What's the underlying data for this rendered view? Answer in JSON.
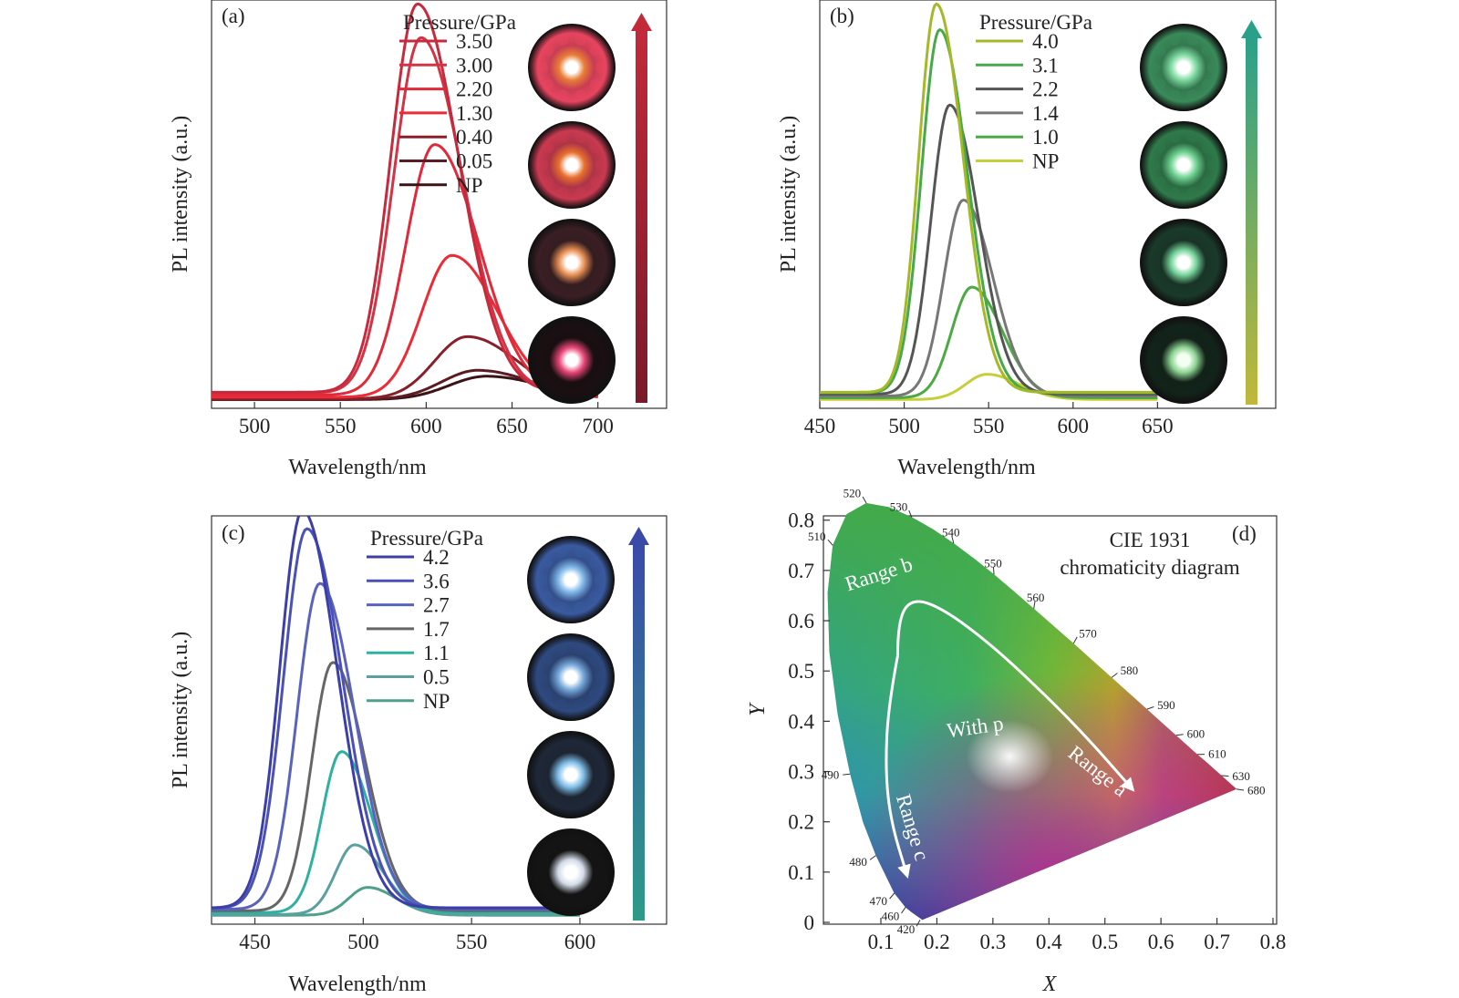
{
  "figure": {
    "colors": {
      "axis": "#333333",
      "cie_wavelength_text": "#222222"
    }
  },
  "chart_data": [
    {
      "id": "a",
      "type": "line",
      "panel_label": "(a)",
      "xlabel": "Wavelength/nm",
      "ylabel": "PL intensity (a.u.)",
      "xlim": [
        475,
        740
      ],
      "ylim": [
        0,
        1.0
      ],
      "xticks": [
        500,
        550,
        600,
        650,
        700
      ],
      "legend_title": "Pressure/GPa",
      "legend_placement": "top-center",
      "grid": false,
      "x_range": [
        475,
        700
      ],
      "series": [
        {
          "name": "3.50",
          "peak_x": 595,
          "peak_y": 1.0,
          "fwhm": 45,
          "color": "#c72a3c"
        },
        {
          "name": "3.00",
          "peak_x": 597,
          "peak_y": 0.915,
          "fwhm": 46,
          "color": "#d33344"
        },
        {
          "name": "2.20",
          "peak_x": 605,
          "peak_y": 0.645,
          "fwhm": 48,
          "color": "#e02a3a"
        },
        {
          "name": "1.30",
          "peak_x": 615,
          "peak_y": 0.365,
          "fwhm": 50,
          "color": "#ee2a35"
        },
        {
          "name": "0.40",
          "peak_x": 624,
          "peak_y": 0.16,
          "fwhm": 55,
          "color": "#8a1f2c"
        },
        {
          "name": "0.05",
          "peak_x": 630,
          "peak_y": 0.075,
          "fwhm": 60,
          "color": "#5c1a22"
        },
        {
          "name": "NP",
          "peak_x": 635,
          "peak_y": 0.06,
          "fwhm": 62,
          "color": "#3a1416"
        }
      ],
      "inset_photos": [
        {
          "glow": "#ffffff",
          "ring": "#e8455f",
          "mid": "#ff8a3a"
        },
        {
          "glow": "#ffffff",
          "ring": "#c93a50",
          "mid": "#ff7a30"
        },
        {
          "glow": "#ffffff",
          "ring": "#3a1f24",
          "mid": "#ff9d5a"
        },
        {
          "glow": "#ffffff",
          "ring": "#1a0f12",
          "mid": "#ff4a80"
        }
      ],
      "arrow_colors": [
        "#c22a3a",
        "#7a1a2a"
      ]
    },
    {
      "id": "b",
      "type": "line",
      "panel_label": "(b)",
      "xlabel": "Wavelength/nm",
      "ylabel": "PL intensity (a.u.)",
      "xlim": [
        450,
        720
      ],
      "ylim": [
        0,
        1.0
      ],
      "xticks": [
        450,
        500,
        550,
        600,
        650
      ],
      "legend_title": "Pressure/GPa",
      "legend_placement": "top-center",
      "grid": false,
      "x_range": [
        450,
        650
      ],
      "series": [
        {
          "name": "4.0",
          "peak_x": 519,
          "peak_y": 1.0,
          "fwhm": 30,
          "color": "#a6b828"
        },
        {
          "name": "3.1",
          "peak_x": 521,
          "peak_y": 0.935,
          "fwhm": 31,
          "color": "#46a94a"
        },
        {
          "name": "2.2",
          "peak_x": 527,
          "peak_y": 0.745,
          "fwhm": 32,
          "color": "#555555"
        },
        {
          "name": "1.4",
          "peak_x": 535,
          "peak_y": 0.505,
          "fwhm": 33,
          "color": "#777777"
        },
        {
          "name": "1.0",
          "peak_x": 540,
          "peak_y": 0.285,
          "fwhm": 34,
          "color": "#4caa42"
        },
        {
          "name": "NP",
          "peak_x": 549,
          "peak_y": 0.065,
          "fwhm": 36,
          "color": "#c5cf3a"
        }
      ],
      "inset_photos": [
        {
          "glow": "#ffffff",
          "ring": "#3a8a5a",
          "mid": "#8af0b0"
        },
        {
          "glow": "#ffffff",
          "ring": "#2f7a4a",
          "mid": "#7ae8a0"
        },
        {
          "glow": "#ffffff",
          "ring": "#1a3a2a",
          "mid": "#80e8a8"
        },
        {
          "glow": "#f4fff2",
          "ring": "#12241a",
          "mid": "#9ae8a0"
        }
      ],
      "arrow_colors": [
        "#c0b83a",
        "#2aa08a"
      ]
    },
    {
      "id": "c",
      "type": "line",
      "panel_label": "(c)",
      "xlabel": "Wavelength/nm",
      "ylabel": "PL intensity (a.u.)",
      "xlim": [
        430,
        640
      ],
      "ylim": [
        0,
        1.0
      ],
      "xticks": [
        450,
        500,
        550,
        600
      ],
      "legend_title": "Pressure/GPa",
      "legend_placement": "top-center",
      "grid": false,
      "x_range": [
        430,
        600
      ],
      "series": [
        {
          "name": "4.2",
          "peak_x": 472,
          "peak_y": 1.0,
          "fwhm": 30,
          "color": "#3d3fa8"
        },
        {
          "name": "3.6",
          "peak_x": 474,
          "peak_y": 0.955,
          "fwhm": 31,
          "color": "#4a52b8"
        },
        {
          "name": "2.7",
          "peak_x": 480,
          "peak_y": 0.82,
          "fwhm": 30,
          "color": "#5a62c0"
        },
        {
          "name": "1.7",
          "peak_x": 486,
          "peak_y": 0.625,
          "fwhm": 28,
          "color": "#666666"
        },
        {
          "name": "1.1",
          "peak_x": 490,
          "peak_y": 0.405,
          "fwhm": 26,
          "color": "#30b0a0"
        },
        {
          "name": "0.5",
          "peak_x": 496,
          "peak_y": 0.175,
          "fwhm": 25,
          "color": "#5aa0a0"
        },
        {
          "name": "NP",
          "peak_x": 502,
          "peak_y": 0.07,
          "fwhm": 25,
          "color": "#4fa08a"
        }
      ],
      "inset_photos": [
        {
          "glow": "#ffffff",
          "ring": "#3a5aa0",
          "mid": "#8ac8ff"
        },
        {
          "glow": "#ffffff",
          "ring": "#2f4a80",
          "mid": "#80b8f0"
        },
        {
          "glow": "#ffffff",
          "ring": "#1f2838",
          "mid": "#8ad0ff"
        },
        {
          "glow": "#ffffff",
          "ring": "#141414",
          "mid": "#e8f0ff"
        }
      ],
      "arrow_colors": [
        "#2e9a88",
        "#3a4aa8"
      ]
    },
    {
      "id": "d",
      "type": "diagram",
      "panel_label": "(d)",
      "title_line1": "CIE 1931",
      "title_line2": "chromaticity diagram",
      "xlabel": "X",
      "ylabel": "Y",
      "xlim": [
        0,
        0.8
      ],
      "ylim": [
        0,
        0.8
      ],
      "xticks": [
        "0.1",
        "0.2",
        "0.3",
        "0.4",
        "0.5",
        "0.6",
        "0.7",
        "0.8"
      ],
      "yticks": [
        "0",
        "0.1",
        "0.2",
        "0.3",
        "0.4",
        "0.5",
        "0.6",
        "0.7",
        "0.8"
      ],
      "locus_labels": [
        {
          "text": "420",
          "x": 0.17,
          "y": 0.005
        },
        {
          "text": "460",
          "x": 0.144,
          "y": 0.03
        },
        {
          "text": "470",
          "x": 0.124,
          "y": 0.058
        },
        {
          "text": "480",
          "x": 0.091,
          "y": 0.133
        },
        {
          "text": "490",
          "x": 0.045,
          "y": 0.295
        },
        {
          "text": "510",
          "x": 0.014,
          "y": 0.75
        },
        {
          "text": "520",
          "x": 0.074,
          "y": 0.834
        },
        {
          "text": "530",
          "x": 0.155,
          "y": 0.806
        },
        {
          "text": "540",
          "x": 0.23,
          "y": 0.754
        },
        {
          "text": "550",
          "x": 0.302,
          "y": 0.692
        },
        {
          "text": "560",
          "x": 0.373,
          "y": 0.624
        },
        {
          "text": "570",
          "x": 0.444,
          "y": 0.555
        },
        {
          "text": "580",
          "x": 0.512,
          "y": 0.487
        },
        {
          "text": "590",
          "x": 0.575,
          "y": 0.424
        },
        {
          "text": "600",
          "x": 0.627,
          "y": 0.372
        },
        {
          "text": "610",
          "x": 0.665,
          "y": 0.334
        },
        {
          "text": "630",
          "x": 0.708,
          "y": 0.292
        },
        {
          "text": "680",
          "x": 0.735,
          "y": 0.265
        }
      ],
      "region_labels": [
        {
          "text": "Range b",
          "x": 0.1,
          "y": 0.68,
          "rotate": -18
        },
        {
          "text": "With p",
          "x": 0.27,
          "y": 0.375,
          "rotate": -8
        },
        {
          "text": "Range a",
          "x": 0.48,
          "y": 0.29,
          "rotate": 38
        },
        {
          "text": "Range c",
          "x": 0.145,
          "y": 0.185,
          "rotate": 73
        }
      ],
      "arrows": [
        {
          "name": "range-a-arrow",
          "path": [
            [
              0.13,
              0.53
            ],
            [
              0.13,
              0.6
            ],
            [
              0.155,
              0.645
            ],
            [
              0.21,
              0.625
            ],
            [
              0.3,
              0.55
            ],
            [
              0.4,
              0.445
            ],
            [
              0.47,
              0.365
            ],
            [
              0.545,
              0.27
            ]
          ]
        },
        {
          "name": "range-c-arrow",
          "path": [
            [
              0.13,
              0.53
            ],
            [
              0.113,
              0.43
            ],
            [
              0.108,
              0.3
            ],
            [
              0.118,
              0.2
            ],
            [
              0.145,
              0.1
            ]
          ]
        }
      ],
      "white_point": {
        "x": 0.33,
        "y": 0.33
      }
    }
  ]
}
